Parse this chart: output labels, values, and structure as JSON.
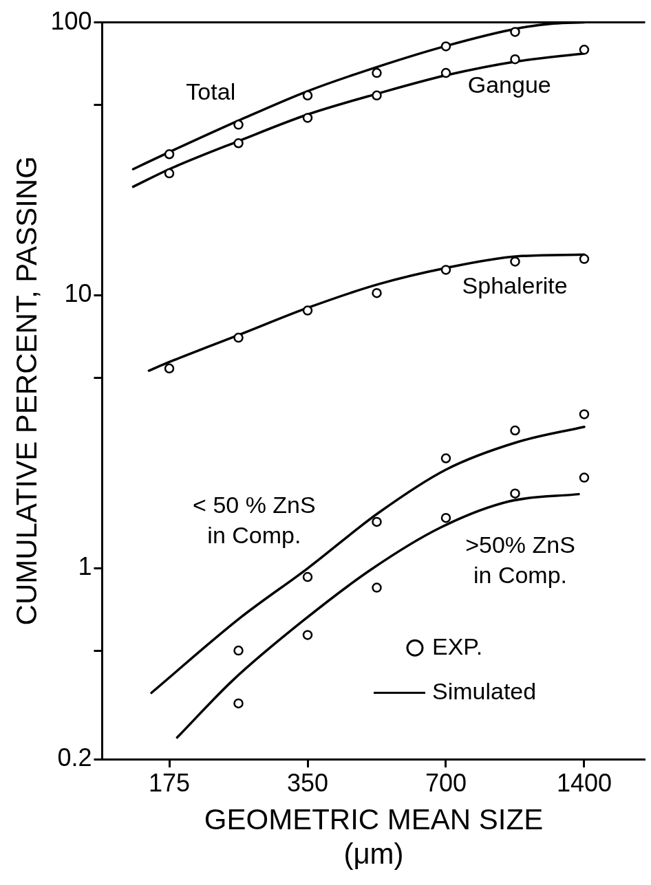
{
  "chart_data": {
    "type": "line",
    "xlabel": "GEOMETRIC MEAN SIZE\n(μm)",
    "ylabel": "CUMULATIVE PERCENT, PASSING",
    "log": "xy",
    "grid": false,
    "legend": "bottom right",
    "xlim": [
      125,
      1900
    ],
    "xticks": [
      175,
      350,
      700,
      1400
    ],
    "ylim": [
      0.2,
      100
    ],
    "yticks": [
      {
        "value": 0.2,
        "label": "0.2"
      },
      {
        "value": 0.5,
        "label": null
      },
      {
        "value": 1,
        "label": "1"
      },
      {
        "value": 5,
        "label": null
      },
      {
        "value": 10,
        "label": "10"
      },
      {
        "value": 50,
        "label": null
      },
      {
        "value": 100,
        "label": "100"
      }
    ],
    "series": [
      {
        "name": "EXP.",
        "type": "scatter",
        "marker": "circle",
        "color": "#000000",
        "x": [
          175,
          247.5,
          350,
          495,
          700,
          990,
          175,
          247.5,
          350,
          495,
          700,
          990,
          1400,
          175,
          247.5,
          350,
          495,
          700,
          990,
          1400,
          247.5,
          350,
          495,
          700,
          990,
          1400,
          247.5,
          350,
          495,
          700,
          990,
          1400
        ],
        "values": [
          32.9,
          42.2,
          54,
          65.3,
          81.7,
          92.3,
          28,
          36.1,
          44.7,
          54,
          65.3,
          73.3,
          79.4,
          5.4,
          7,
          8.8,
          10.2,
          12.4,
          13.3,
          13.6,
          0.5,
          0.93,
          1.48,
          2.53,
          3.2,
          3.67,
          0.32,
          0.57,
          0.85,
          1.53,
          1.88,
          2.15
        ]
      },
      {
        "name": "Total",
        "marker": "none",
        "line_style": "solid",
        "color": "#000000",
        "x": [
          146,
          175,
          250,
          350,
          500,
          700,
          1000,
          1200,
          1400
        ],
        "values": [
          29,
          33.5,
          44,
          56,
          69,
          82,
          95,
          99,
          100
        ]
      },
      {
        "name": "Gangue",
        "marker": "none",
        "line_style": "solid",
        "color": "#000000",
        "x": [
          146,
          175,
          250,
          350,
          500,
          700,
          1000,
          1400
        ],
        "values": [
          25,
          29,
          37,
          46,
          55,
          64,
          72,
          77
        ]
      },
      {
        "name": "Sphalerite",
        "marker": "none",
        "line_style": "solid",
        "color": "#000000",
        "x": [
          158,
          175,
          250,
          350,
          500,
          700,
          1000,
          1400
        ],
        "values": [
          5.3,
          5.7,
          7.2,
          9,
          11,
          12.6,
          13.9,
          14.1
        ]
      },
      {
        "name": "< 50 % ZnS\nin Comp.",
        "marker": "none",
        "line_style": "solid",
        "color": "#000000",
        "x": [
          160,
          250,
          350,
          500,
          700,
          1000,
          1400
        ],
        "values": [
          0.35,
          0.66,
          1,
          1.6,
          2.3,
          2.9,
          3.3
        ]
      },
      {
        "name": ">50% ZnS\nin Comp.",
        "marker": "none",
        "line_style": "solid",
        "color": "#000000",
        "x": [
          182,
          241,
          341,
          481,
          681,
          962,
          1362
        ],
        "values": [
          0.24,
          0.39,
          0.64,
          0.99,
          1.41,
          1.76,
          1.87
        ]
      }
    ],
    "annotations": [
      "Simulated"
    ]
  }
}
